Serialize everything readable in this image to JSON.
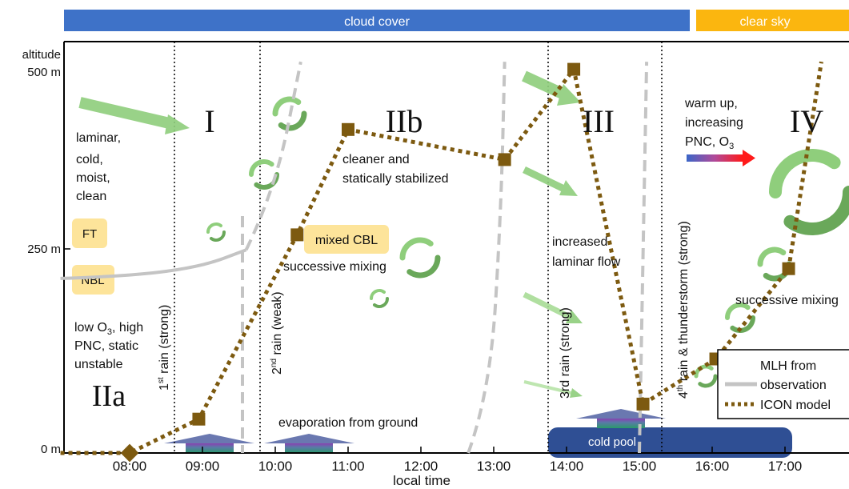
{
  "top_bars": {
    "cloud_cover": "cloud cover",
    "clear_sky": "clear sky"
  },
  "colors": {
    "cloud_bar": "#3e72c8",
    "clear_bar": "#fbb60f",
    "model": "#7d5a10",
    "observation": "#c4c4c4",
    "arrow_green": "#8fce7c",
    "box_fill": "#fde49a",
    "cold_pool": "#2f4f94",
    "ground_arrow_purple": "#7a5aa8",
    "ground_arrow_teal": "#2a9a8c"
  },
  "axis": {
    "ylabel": "altitude",
    "xlabel": "local time",
    "y_ticks": [
      "500 m",
      "250 m",
      "0 m"
    ],
    "x_ticks": [
      "08:00",
      "09:00",
      "10:00",
      "11:00",
      "12:00",
      "13:00",
      "14:00",
      "15:00",
      "16:00",
      "17:00"
    ]
  },
  "phases": {
    "I": "I",
    "IIa": "IIa",
    "IIb": "IIb",
    "III": "III",
    "IV": "IV"
  },
  "rain_events": {
    "r1_sup": "st",
    "r1_pre": "1",
    "r1_post": " rain (strong)",
    "r2_pre": "2",
    "r2_sup": "nd",
    "r2_post": " rain (weak)",
    "r3": "3rd rain (strong)",
    "r4_pre": "4",
    "r4_sup": "th",
    "r4_post": " rain & thunderstorm (strong)"
  },
  "annotations": {
    "laminar": [
      "laminar,",
      "cold,",
      "moist,",
      "clean"
    ],
    "ft": "FT",
    "nbl": "NBL",
    "low_o3_l1_pre": "low O",
    "low_o3_l1_sub": "3",
    "low_o3_l1_post": ", high",
    "low_o3_l2": "PNC, static",
    "low_o3_l3": "unstable",
    "cleaner": [
      "cleaner and",
      "statically stabilized"
    ],
    "mixed_cbl": "mixed CBL",
    "successive_mixing_1": "successive mixing",
    "evaporation": "evaporation from ground",
    "increased": [
      "increased",
      "laminar flow"
    ],
    "warm_up": [
      "warm up,",
      "increasing"
    ],
    "pnc_o3_pre": "PNC, O",
    "pnc_o3_sub": "3",
    "successive_mixing_2": "successive mixing",
    "cold_pool": "cold pool"
  },
  "legend": {
    "title": "MLH from",
    "observation": "observation",
    "model": "ICON model"
  },
  "chart_data": {
    "type": "line",
    "xlabel": "local time",
    "ylabel": "altitude",
    "x_unit": "hour",
    "xlim": [
      7.05,
      17.7
    ],
    "ylim": [
      0,
      520
    ],
    "y_ticks": [
      0,
      250,
      500
    ],
    "x_ticks": [
      8,
      9,
      10,
      11,
      12,
      13,
      14,
      15,
      16,
      17
    ],
    "series": [
      {
        "name": "ICON model",
        "style": "dotted",
        "x": [
          7.05,
          8.0,
          8.95,
          10.3,
          11.0,
          13.15,
          14.1,
          15.05,
          16.05,
          17.05,
          17.5
        ],
        "y": [
          0,
          0,
          45,
          290,
          430,
          390,
          510,
          65,
          125,
          245,
          520
        ]
      },
      {
        "name": "observation",
        "style": "dashed",
        "x": [
          7.05,
          8.0,
          9.0,
          9.6,
          10.0,
          10.35,
          12.65,
          12.95,
          13.1,
          13.15,
          15.0,
          15.05,
          15.1
        ],
        "y": [
          232,
          235,
          248,
          270,
          350,
          520,
          0,
          80,
          320,
          520,
          0,
          260,
          520
        ]
      }
    ],
    "rain_times": [
      8.6,
      9.7,
      13.45,
      15.0
    ]
  }
}
